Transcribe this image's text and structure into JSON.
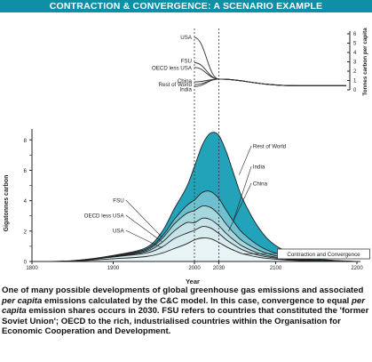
{
  "title": "CONTRACTION & CONVERGENCE: A SCENARIO EXAMPLE",
  "caption": {
    "part1": "One of many possible developments of global greenhouse gas emissions and associated ",
    "em1": "per capita",
    "part2": " emissions calculated by the C&C model. In this case, convergence to equal ",
    "em2": "per capita",
    "part3": " emission shares occurs in 2030. FSU refers to countries that constituted the 'former Soviet Union'; OECD to the rich, industrialised countries within the Organisation for Economic Cooperation and Development."
  },
  "colors": {
    "title_bg": "#0f8fa6",
    "rest_of_world": "#22a3ba",
    "india": "#6cc0cf",
    "china": "#a6d7df",
    "fsu": "#c5e3e8",
    "oecd_less_usa": "#d8ebee",
    "usa": "#e8f3f5"
  },
  "chart_data": [
    {
      "type": "line",
      "ylabel": "Tonnes carbon per capita",
      "ylim": [
        0,
        6
      ],
      "yticks": [
        0,
        1,
        2,
        3,
        4,
        5,
        6
      ],
      "x": [
        2000,
        2030,
        2200
      ],
      "series": [
        {
          "name": "USA",
          "values": [
            5.6,
            1.15,
            0.45
          ]
        },
        {
          "name": "FSU",
          "values": [
            2.9,
            1.15,
            0.45
          ]
        },
        {
          "name": "OECD less USA",
          "values": [
            2.4,
            1.15,
            0.45
          ]
        },
        {
          "name": "China",
          "values": [
            0.85,
            1.15,
            0.45
          ]
        },
        {
          "name": "Rest of World",
          "values": [
            0.55,
            1.15,
            0.45
          ]
        },
        {
          "name": "India",
          "values": [
            0.35,
            1.15,
            0.45
          ]
        }
      ]
    },
    {
      "type": "area",
      "xlabel": "Year",
      "ylabel": "Gigatonnes carbon",
      "xlim": [
        1800,
        2200
      ],
      "xticks": [
        "1800",
        "1900",
        "2000",
        "2030",
        "2100",
        "2200"
      ],
      "ylim": [
        0,
        8.6
      ],
      "yticks": [
        0,
        2,
        4,
        6,
        8
      ],
      "annotation": "Contraction and Convergence",
      "x": [
        1800,
        1850,
        1900,
        1940,
        1960,
        1975,
        1990,
        2000,
        2010,
        2020,
        2030,
        2040,
        2050,
        2060,
        2080,
        2100,
        2130,
        2160,
        2200
      ],
      "series": [
        {
          "name": "USA",
          "values": [
            0,
            0.02,
            0.18,
            0.32,
            0.55,
            0.85,
            1.15,
            1.42,
            1.55,
            1.5,
            1.25,
            0.95,
            0.7,
            0.5,
            0.27,
            0.15,
            0.05,
            0.02,
            0
          ]
        },
        {
          "name": "OECD less USA",
          "values": [
            0,
            0.03,
            0.3,
            0.55,
            0.95,
            1.5,
            1.85,
            2.05,
            2.3,
            2.2,
            1.85,
            1.4,
            1.05,
            0.75,
            0.4,
            0.22,
            0.08,
            0.03,
            0
          ]
        },
        {
          "name": "FSU",
          "values": [
            0,
            0.03,
            0.32,
            0.65,
            1.25,
            2.0,
            2.55,
            2.55,
            2.85,
            2.75,
            2.35,
            1.8,
            1.35,
            0.98,
            0.52,
            0.28,
            0.1,
            0.04,
            0
          ]
        },
        {
          "name": "China",
          "values": [
            0,
            0.04,
            0.35,
            0.72,
            1.5,
            2.45,
            3.15,
            3.35,
            3.65,
            3.55,
            3.1,
            2.4,
            1.8,
            1.32,
            0.72,
            0.38,
            0.14,
            0.05,
            0
          ]
        },
        {
          "name": "India",
          "values": [
            0,
            0.04,
            0.38,
            0.8,
            1.65,
            2.75,
            3.65,
            4.05,
            4.55,
            4.6,
            4.15,
            3.3,
            2.5,
            1.85,
            1.02,
            0.55,
            0.2,
            0.07,
            0
          ]
        },
        {
          "name": "Rest of World",
          "values": [
            0,
            0.05,
            0.4,
            0.9,
            1.95,
            3.45,
            4.85,
            6.25,
            7.7,
            8.45,
            8.3,
            7.1,
            5.5,
            4.05,
            2.15,
            1.05,
            0.35,
            0.12,
            0
          ]
        }
      ]
    }
  ]
}
